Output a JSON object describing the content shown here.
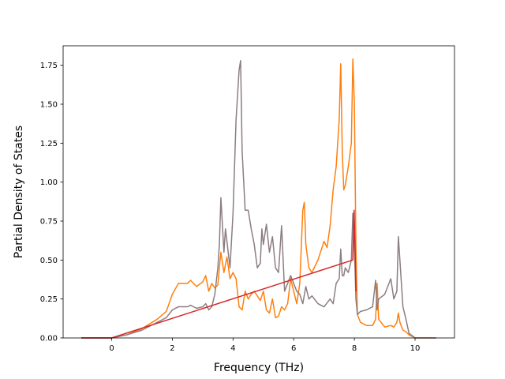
{
  "chart_data": {
    "type": "line",
    "title": "",
    "xlabel": "Frequency (THz)",
    "ylabel": "Partial Density of States",
    "xlim": [
      -1.6,
      11.3
    ],
    "ylim": [
      0,
      1.875
    ],
    "xticks": [
      0,
      2,
      4,
      6,
      8,
      10
    ],
    "yticks": [
      0.0,
      0.25,
      0.5,
      0.75,
      1.0,
      1.25,
      1.5,
      1.75
    ],
    "xtick_labels": [
      "0",
      "2",
      "4",
      "6",
      "8",
      "10"
    ],
    "ytick_labels": [
      "0.00",
      "0.25",
      "0.50",
      "0.75",
      "1.00",
      "1.25",
      "1.50",
      "1.75"
    ],
    "grid": false,
    "legend": "none",
    "series": [
      {
        "color": "#d62728",
        "x": [
          -1.0,
          0.0,
          7.95,
          7.99,
          8.02,
          8.05
        ],
        "y": [
          0.0,
          0.0,
          0.5,
          0.82,
          0.6,
          0.3
        ]
      },
      {
        "color": "#ff7f0e",
        "x": [
          -1.0,
          0.0,
          0.5,
          1.0,
          1.5,
          1.8,
          2.0,
          2.2,
          2.5,
          2.6,
          2.8,
          3.0,
          3.1,
          3.2,
          3.3,
          3.4,
          3.5,
          3.55,
          3.6,
          3.7,
          3.8,
          3.9,
          4.0,
          4.1,
          4.2,
          4.3,
          4.4,
          4.5,
          4.6,
          4.7,
          4.8,
          4.9,
          5.0,
          5.1,
          5.2,
          5.3,
          5.4,
          5.5,
          5.6,
          5.7,
          5.8,
          5.9,
          6.0,
          6.1,
          6.2,
          6.3,
          6.35,
          6.4,
          6.5,
          6.6,
          6.8,
          7.0,
          7.1,
          7.2,
          7.3,
          7.4,
          7.5,
          7.55,
          7.6,
          7.65,
          7.7,
          7.8,
          7.9,
          7.95,
          8.0,
          8.05,
          8.1,
          8.2,
          8.4,
          8.6,
          8.7,
          8.75,
          8.8,
          9.0,
          9.2,
          9.3,
          9.4,
          9.45,
          9.5,
          9.6,
          9.7,
          9.8,
          10.0,
          10.7
        ],
        "y": [
          0.0,
          0.0,
          0.02,
          0.06,
          0.12,
          0.17,
          0.28,
          0.35,
          0.35,
          0.37,
          0.33,
          0.36,
          0.4,
          0.3,
          0.35,
          0.32,
          0.34,
          0.45,
          0.55,
          0.42,
          0.52,
          0.38,
          0.42,
          0.38,
          0.2,
          0.18,
          0.3,
          0.25,
          0.28,
          0.3,
          0.27,
          0.24,
          0.3,
          0.18,
          0.16,
          0.25,
          0.13,
          0.14,
          0.2,
          0.18,
          0.22,
          0.38,
          0.3,
          0.22,
          0.35,
          0.82,
          0.87,
          0.6,
          0.45,
          0.42,
          0.5,
          0.62,
          0.58,
          0.72,
          0.95,
          1.1,
          1.4,
          1.76,
          1.2,
          0.95,
          0.98,
          1.1,
          1.25,
          1.79,
          1.5,
          0.6,
          0.15,
          0.1,
          0.08,
          0.08,
          0.12,
          0.35,
          0.12,
          0.07,
          0.08,
          0.07,
          0.1,
          0.16,
          0.1,
          0.05,
          0.04,
          0.02,
          0.0,
          0.0
        ]
      },
      {
        "color": "#8c7d80",
        "x": [
          -1.0,
          0.0,
          0.5,
          1.0,
          1.5,
          1.8,
          2.0,
          2.2,
          2.5,
          2.6,
          2.8,
          3.0,
          3.1,
          3.2,
          3.3,
          3.4,
          3.5,
          3.55,
          3.6,
          3.7,
          3.75,
          3.8,
          3.9,
          4.0,
          4.1,
          4.2,
          4.25,
          4.3,
          4.4,
          4.5,
          4.6,
          4.7,
          4.8,
          4.9,
          4.95,
          5.0,
          5.1,
          5.2,
          5.3,
          5.4,
          5.5,
          5.6,
          5.7,
          5.8,
          5.9,
          6.0,
          6.1,
          6.2,
          6.3,
          6.4,
          6.5,
          6.6,
          6.8,
          7.0,
          7.2,
          7.3,
          7.4,
          7.5,
          7.55,
          7.6,
          7.65,
          7.7,
          7.8,
          7.9,
          7.95,
          8.0,
          8.05,
          8.1,
          8.2,
          8.4,
          8.6,
          8.7,
          8.75,
          8.8,
          9.0,
          9.2,
          9.3,
          9.4,
          9.45,
          9.5,
          9.6,
          9.7,
          9.8,
          10.0,
          10.7
        ],
        "y": [
          0.0,
          0.0,
          0.02,
          0.05,
          0.1,
          0.13,
          0.18,
          0.2,
          0.2,
          0.21,
          0.19,
          0.2,
          0.22,
          0.18,
          0.2,
          0.28,
          0.45,
          0.6,
          0.9,
          0.55,
          0.7,
          0.62,
          0.45,
          0.8,
          1.4,
          1.72,
          1.78,
          1.2,
          0.82,
          0.82,
          0.7,
          0.6,
          0.45,
          0.48,
          0.7,
          0.6,
          0.73,
          0.55,
          0.65,
          0.45,
          0.42,
          0.72,
          0.3,
          0.35,
          0.4,
          0.35,
          0.3,
          0.28,
          0.22,
          0.33,
          0.25,
          0.27,
          0.22,
          0.2,
          0.25,
          0.22,
          0.35,
          0.38,
          0.57,
          0.4,
          0.4,
          0.45,
          0.42,
          0.5,
          0.8,
          0.6,
          0.25,
          0.15,
          0.17,
          0.18,
          0.2,
          0.37,
          0.18,
          0.25,
          0.28,
          0.38,
          0.25,
          0.3,
          0.65,
          0.5,
          0.2,
          0.12,
          0.03,
          0.0,
          0.0
        ]
      }
    ]
  }
}
